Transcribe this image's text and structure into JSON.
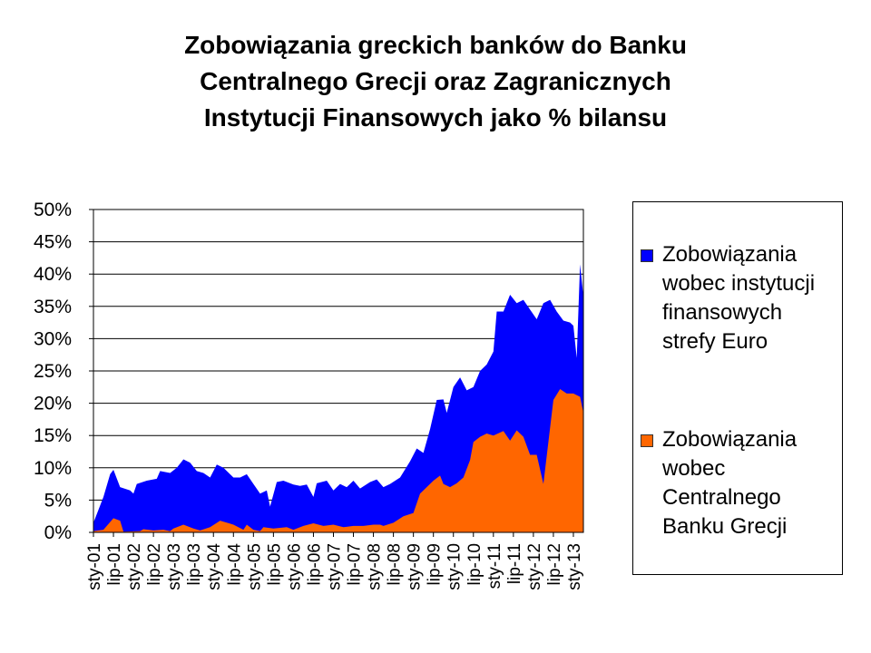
{
  "title_lines": [
    "Zobowiązania greckich banków do Banku",
    "Centralnego Grecji oraz Zagranicznych",
    "Instytucji Finansowych jako % bilansu"
  ],
  "legend": {
    "items": [
      {
        "label": "Zobowiązania\nwobec instytucji\nfinansowych\nstrefy Euro",
        "color": "#0000ff"
      },
      {
        "label": "Zobowiązania\nwobec\nCentralnego\nBanku Grecji",
        "color": "#ff6600"
      }
    ],
    "placement": "right"
  },
  "chart_data": {
    "type": "area",
    "stacked": true,
    "title": "Zobowiązania greckich banków do Banku Centralnego Grecji oraz Zagranicznych Instytucji Finansowych jako % bilansu",
    "xlabel": "",
    "ylabel": "",
    "ylim": [
      0,
      0.5
    ],
    "y_ticks": [
      "0%",
      "5%",
      "10%",
      "15%",
      "20%",
      "25%",
      "30%",
      "35%",
      "40%",
      "45%",
      "50%"
    ],
    "grid": true,
    "x_ticks": [
      "sty-01",
      "lip-01",
      "sty-02",
      "lip-02",
      "sty-03",
      "lip-03",
      "sty-04",
      "lip-04",
      "sty-05",
      "lip-05",
      "sty-06",
      "lip-06",
      "sty-07",
      "lip-07",
      "sty-08",
      "lip-08",
      "sty-09",
      "lip-09",
      "sty-10",
      "lip-10",
      "sty-11",
      "lip-11",
      "sty-12",
      "lip-12",
      "sty-13"
    ],
    "x_start": "2001-01",
    "x_end": "2013-04",
    "series": [
      {
        "name": "Zobowiązania wobec Centralnego Banku Grecji",
        "color": "#ff6600",
        "points": [
          [
            "2001-01",
            0.002
          ],
          [
            "2001-04",
            0.004
          ],
          [
            "2001-07",
            0.022
          ],
          [
            "2001-09",
            0.018
          ],
          [
            "2001-10",
            0.001
          ],
          [
            "2002-03",
            0.002
          ],
          [
            "2002-04",
            0.005
          ],
          [
            "2002-07",
            0.003
          ],
          [
            "2002-10",
            0.004
          ],
          [
            "2002-12",
            0.002
          ],
          [
            "2003-01",
            0.006
          ],
          [
            "2003-04",
            0.012
          ],
          [
            "2003-07",
            0.006
          ],
          [
            "2003-09",
            0.003
          ],
          [
            "2003-12",
            0.008
          ],
          [
            "2004-03",
            0.018
          ],
          [
            "2004-07",
            0.012
          ],
          [
            "2004-10",
            0.004
          ],
          [
            "2004-11",
            0.012
          ],
          [
            "2005-01",
            0.004
          ],
          [
            "2005-03",
            0.002
          ],
          [
            "2005-04",
            0.008
          ],
          [
            "2005-07",
            0.006
          ],
          [
            "2005-11",
            0.008
          ],
          [
            "2006-01",
            0.004
          ],
          [
            "2006-04",
            0.01
          ],
          [
            "2006-07",
            0.014
          ],
          [
            "2006-10",
            0.01
          ],
          [
            "2007-01",
            0.012
          ],
          [
            "2007-04",
            0.008
          ],
          [
            "2007-07",
            0.01
          ],
          [
            "2007-10",
            0.01
          ],
          [
            "2008-01",
            0.012
          ],
          [
            "2008-03",
            0.012
          ],
          [
            "2008-04",
            0.01
          ],
          [
            "2008-07",
            0.015
          ],
          [
            "2008-10",
            0.025
          ],
          [
            "2009-01",
            0.03
          ],
          [
            "2009-03",
            0.06
          ],
          [
            "2009-05",
            0.07
          ],
          [
            "2009-07",
            0.08
          ],
          [
            "2009-09",
            0.088
          ],
          [
            "2009-10",
            0.075
          ],
          [
            "2009-12",
            0.07
          ],
          [
            "2010-02",
            0.076
          ],
          [
            "2010-04",
            0.085
          ],
          [
            "2010-06",
            0.112
          ],
          [
            "2010-07",
            0.14
          ],
          [
            "2010-09",
            0.148
          ],
          [
            "2010-11",
            0.153
          ],
          [
            "2011-01",
            0.15
          ],
          [
            "2011-04",
            0.157
          ],
          [
            "2011-06",
            0.142
          ],
          [
            "2011-08",
            0.158
          ],
          [
            "2011-10",
            0.148
          ],
          [
            "2011-12",
            0.12
          ],
          [
            "2012-02",
            0.12
          ],
          [
            "2012-04",
            0.075
          ],
          [
            "2012-07",
            0.205
          ],
          [
            "2012-09",
            0.222
          ],
          [
            "2012-11",
            0.215
          ],
          [
            "2013-01",
            0.215
          ],
          [
            "2013-03",
            0.21
          ],
          [
            "2013-04",
            0.185
          ]
        ]
      },
      {
        "name": "Zobowiązania wobec instytucji finansowych strefy Euro",
        "color": "#0000ff",
        "total_points": [
          [
            "2001-01",
            0.012
          ],
          [
            "2001-03",
            0.05
          ],
          [
            "2001-05",
            0.09
          ],
          [
            "2001-07",
            0.097
          ],
          [
            "2001-09",
            0.066
          ],
          [
            "2001-11",
            0.064
          ],
          [
            "2002-01",
            0.058
          ],
          [
            "2002-03",
            0.075
          ],
          [
            "2002-05",
            0.078
          ],
          [
            "2002-07",
            0.08
          ],
          [
            "2002-09",
            0.094
          ],
          [
            "2002-11",
            0.09
          ],
          [
            "2003-01",
            0.098
          ],
          [
            "2003-03",
            0.105
          ],
          [
            "2003-05",
            0.113
          ],
          [
            "2003-07",
            0.11
          ],
          [
            "2003-09",
            0.097
          ],
          [
            "2003-11",
            0.092
          ],
          [
            "2004-01",
            0.086
          ],
          [
            "2004-03",
            0.104
          ],
          [
            "2004-05",
            0.1
          ],
          [
            "2004-07",
            0.088
          ],
          [
            "2004-09",
            0.082
          ],
          [
            "2004-11",
            0.093
          ],
          [
            "2005-01",
            0.075
          ],
          [
            "2005-03",
            0.062
          ],
          [
            "2005-05",
            0.063
          ],
          [
            "2005-07",
            0.05
          ],
          [
            "2005-09",
            0.078
          ],
          [
            "2005-11",
            0.08
          ],
          [
            "2006-01",
            0.07
          ],
          [
            "2006-03",
            0.075
          ],
          [
            "2006-05",
            0.07
          ],
          [
            "2006-07",
            0.05
          ],
          [
            "2006-09",
            0.072
          ],
          [
            "2006-11",
            0.076
          ],
          [
            "2007-01",
            0.058
          ],
          [
            "2007-03",
            0.074
          ],
          [
            "2007-05",
            0.066
          ],
          [
            "2007-07",
            0.08
          ],
          [
            "2007-09",
            0.064
          ],
          [
            "2007-11",
            0.08
          ],
          [
            "2008-01",
            0.076
          ],
          [
            "2008-03",
            0.078
          ],
          [
            "2008-05",
            0.062
          ],
          [
            "2008-07",
            0.06
          ],
          [
            "2008-09",
            0.072
          ],
          [
            "2008-11",
            0.07
          ],
          [
            "2009-01",
            0.082
          ],
          [
            "2009-03",
            0.078
          ],
          [
            "2009-05",
            0.072
          ],
          [
            "2009-07",
            0.075
          ],
          [
            "2009-09",
            0.082
          ],
          [
            "2009-11",
            0.065
          ],
          [
            "2010-01",
            0.071
          ],
          [
            "2010-03",
            0.078
          ],
          [
            "2010-05",
            0.09
          ],
          [
            "2010-07",
            0.13
          ],
          [
            "2010-09",
            0.124
          ],
          [
            "2010-11",
            0.12
          ],
          [
            "2011-01",
            0.134
          ],
          [
            "2011-03",
            0.125
          ],
          [
            "2011-05",
            0.128
          ],
          [
            "2011-07",
            0.115
          ],
          [
            "2011-09",
            0.12
          ],
          [
            "2011-11",
            0.135
          ],
          [
            "2012-01",
            0.13
          ],
          [
            "2012-03",
            0.105
          ],
          [
            "2012-05",
            0.105
          ],
          [
            "2012-07",
            0.115
          ],
          [
            "2012-09",
            0.195
          ],
          [
            "2012-11",
            0.202
          ],
          [
            "2013-01",
            0.205
          ],
          [
            "2013-03",
            0.21
          ],
          [
            "2013-04",
            0.175
          ]
        ],
        "points_total_stacked": [
          [
            "2001-01",
            0.015
          ],
          [
            "2001-04",
            0.055
          ],
          [
            "2001-06",
            0.09
          ],
          [
            "2001-07",
            0.097
          ],
          [
            "2001-09",
            0.07
          ],
          [
            "2001-12",
            0.065
          ],
          [
            "2002-01",
            0.06
          ],
          [
            "2002-02",
            0.075
          ],
          [
            "2002-05",
            0.08
          ],
          [
            "2002-08",
            0.083
          ],
          [
            "2002-09",
            0.095
          ],
          [
            "2002-12",
            0.092
          ],
          [
            "2003-02",
            0.1
          ],
          [
            "2003-04",
            0.113
          ],
          [
            "2003-06",
            0.108
          ],
          [
            "2003-08",
            0.095
          ],
          [
            "2003-10",
            0.092
          ],
          [
            "2003-12",
            0.085
          ],
          [
            "2004-02",
            0.105
          ],
          [
            "2004-04",
            0.1
          ],
          [
            "2004-07",
            0.085
          ],
          [
            "2004-09",
            0.085
          ],
          [
            "2004-11",
            0.09
          ],
          [
            "2005-01",
            0.075
          ],
          [
            "2005-03",
            0.06
          ],
          [
            "2005-05",
            0.065
          ],
          [
            "2005-06",
            0.04
          ],
          [
            "2005-08",
            0.078
          ],
          [
            "2005-10",
            0.08
          ],
          [
            "2006-01",
            0.074
          ],
          [
            "2006-03",
            0.072
          ],
          [
            "2006-05",
            0.074
          ],
          [
            "2006-07",
            0.055
          ],
          [
            "2006-08",
            0.076
          ],
          [
            "2006-11",
            0.08
          ],
          [
            "2007-01",
            0.065
          ],
          [
            "2007-03",
            0.075
          ],
          [
            "2007-05",
            0.07
          ],
          [
            "2007-07",
            0.08
          ],
          [
            "2007-09",
            0.068
          ],
          [
            "2007-12",
            0.078
          ],
          [
            "2008-02",
            0.082
          ],
          [
            "2008-04",
            0.07
          ],
          [
            "2008-06",
            0.075
          ],
          [
            "2008-09",
            0.085
          ],
          [
            "2008-12",
            0.11
          ],
          [
            "2009-02",
            0.13
          ],
          [
            "2009-04",
            0.123
          ],
          [
            "2009-06",
            0.16
          ],
          [
            "2009-08",
            0.205
          ],
          [
            "2009-10",
            0.206
          ],
          [
            "2009-11",
            0.185
          ],
          [
            "2010-01",
            0.225
          ],
          [
            "2010-03",
            0.24
          ],
          [
            "2010-05",
            0.22
          ],
          [
            "2010-07",
            0.225
          ],
          [
            "2010-09",
            0.25
          ],
          [
            "2010-11",
            0.26
          ],
          [
            "2011-01",
            0.28
          ],
          [
            "2011-02",
            0.342
          ],
          [
            "2011-04",
            0.342
          ],
          [
            "2011-06",
            0.368
          ],
          [
            "2011-08",
            0.355
          ],
          [
            "2011-10",
            0.36
          ],
          [
            "2011-12",
            0.345
          ],
          [
            "2012-02",
            0.33
          ],
          [
            "2012-04",
            0.355
          ],
          [
            "2012-06",
            0.36
          ],
          [
            "2012-08",
            0.342
          ],
          [
            "2012-10",
            0.328
          ],
          [
            "2012-12",
            0.325
          ],
          [
            "2013-01",
            0.32
          ],
          [
            "2013-02",
            0.27
          ],
          [
            "2013-03",
            0.415
          ],
          [
            "2013-04",
            0.365
          ]
        ]
      }
    ]
  }
}
